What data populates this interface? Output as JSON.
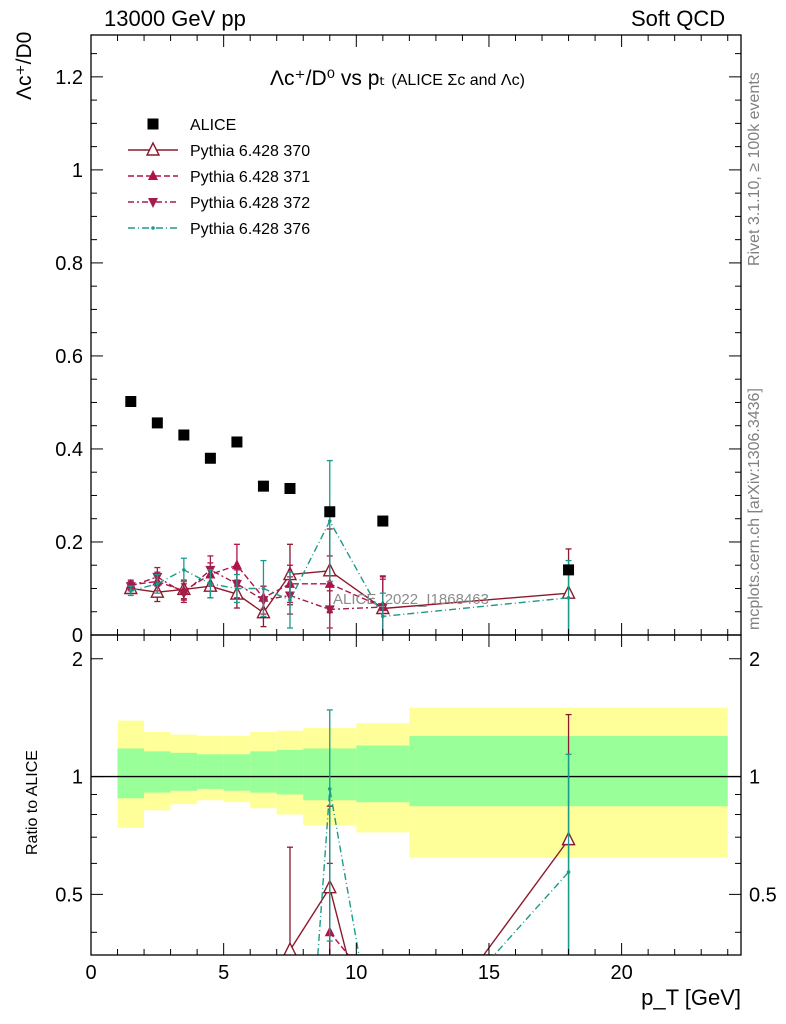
{
  "header": {
    "beam": "13000 GeV pp",
    "process": "Soft QCD"
  },
  "side_notes": {
    "rivet": "Rivet 3.1.10, ≥ 100k events",
    "mcplots": "mcplots.cern.ch [arXiv:1306.3436]"
  },
  "chart_data": {
    "type": "scatter",
    "title_main": "Λc⁺/D⁰ vs pₜ",
    "title_sub": "(ALICE Σc and Λc)",
    "watermark": "ALICE_2022_I1868463",
    "xlabel": "p_T [GeV]",
    "ylabel": "Λc⁺/D0",
    "ratio_ylabel": "Ratio to ALICE",
    "xlim": [
      0,
      24.5
    ],
    "ylim": [
      0,
      1.29
    ],
    "ratio_ylim": [
      0.35,
      2.3
    ],
    "x_ticks": [
      0,
      5,
      10,
      15,
      20
    ],
    "y_ticks": [
      0,
      0.2,
      0.4,
      0.6,
      0.8,
      1,
      1.2
    ],
    "ratio_ticks": [
      0.5,
      1,
      2
    ],
    "legend_position": "top-left",
    "data": {
      "name": "ALICE",
      "x": [
        1.5,
        2.5,
        3.5,
        4.5,
        5.5,
        6.5,
        7.5,
        9,
        11,
        18
      ],
      "y": [
        0.502,
        0.456,
        0.43,
        0.38,
        0.415,
        0.32,
        0.315,
        0.265,
        0.245,
        0.14
      ]
    },
    "bins": {
      "edges": [
        1,
        2,
        3,
        4,
        5,
        6,
        7,
        8,
        10,
        12,
        24
      ],
      "band_stat": [
        [
          0.88,
          1.18
        ],
        [
          0.91,
          1.16
        ],
        [
          0.92,
          1.15
        ],
        [
          0.93,
          1.14
        ],
        [
          0.92,
          1.14
        ],
        [
          0.91,
          1.16
        ],
        [
          0.9,
          1.17
        ],
        [
          0.87,
          1.18
        ],
        [
          0.86,
          1.2
        ],
        [
          0.84,
          1.27
        ]
      ],
      "band_total": [
        [
          0.74,
          1.39
        ],
        [
          0.82,
          1.3
        ],
        [
          0.85,
          1.28
        ],
        [
          0.87,
          1.27
        ],
        [
          0.86,
          1.27
        ],
        [
          0.83,
          1.3
        ],
        [
          0.8,
          1.31
        ],
        [
          0.75,
          1.33
        ],
        [
          0.72,
          1.37
        ],
        [
          0.62,
          1.5
        ]
      ]
    },
    "series": [
      {
        "name": "Pythia 6.428 370",
        "color": "#8b1a2c",
        "marker": "triangle-open",
        "dash": "",
        "x": [
          1.5,
          2.5,
          3.5,
          4.5,
          5.5,
          6.5,
          7.5,
          9,
          11,
          18
        ],
        "y": [
          0.1,
          0.092,
          0.098,
          0.105,
          0.088,
          0.048,
          0.13,
          0.138,
          0.057,
          0.09
        ],
        "err": [
          0.008,
          0.02,
          0.02,
          0.025,
          0.03,
          0.03,
          0.065,
          0.09,
          0.07,
          0.095
        ]
      },
      {
        "name": "Pythia 6.428 371",
        "color": "#b0124a",
        "marker": "triangle-up",
        "dash": "6 3",
        "x": [
          1.5,
          2.5,
          3.5,
          4.5,
          5.5,
          6.5,
          7.5,
          9,
          11,
          18
        ],
        "y": [
          0.108,
          0.115,
          0.095,
          0.13,
          0.15,
          0.08,
          0.11,
          0.11,
          0.06,
          0.0
        ],
        "err": [
          0.01,
          0.02,
          0.02,
          0.025,
          0.045,
          0.025,
          0.04,
          0.06,
          0.065,
          0.0
        ]
      },
      {
        "name": "Pythia 6.428 372",
        "color": "#a01d4d",
        "marker": "triangle-down",
        "dash": "6 3 2 3",
        "x": [
          1.5,
          2.5,
          3.5,
          4.5,
          5.5,
          6.5,
          7.5,
          9,
          11,
          18
        ],
        "y": [
          0.105,
          0.125,
          0.09,
          0.14,
          0.11,
          0.075,
          0.085,
          0.055,
          0.06,
          0.0
        ],
        "err": [
          0.01,
          0.02,
          0.02,
          0.03,
          0.03,
          0.03,
          0.04,
          0.04,
          0.06,
          0.0
        ]
      },
      {
        "name": "Pythia 6.428 376",
        "color": "#1a9b8a",
        "marker": "dot",
        "dash": "7 3 1 3",
        "x": [
          1.5,
          2.5,
          3.5,
          4.5,
          5.5,
          6.5,
          7.5,
          9,
          11,
          18
        ],
        "y": [
          0.095,
          0.11,
          0.14,
          0.11,
          0.1,
          0.1,
          0.075,
          0.245,
          0.04,
          0.08
        ],
        "err": [
          0.01,
          0.02,
          0.025,
          0.03,
          0.03,
          0.06,
          0.06,
          0.13,
          0.05,
          0.08
        ]
      }
    ],
    "ratio_series": [
      {
        "name": "Pythia 6.428 370",
        "x": [
          7.5,
          9,
          9.65,
          14.8,
          18
        ],
        "y": [
          0.36,
          0.52,
          0.35,
          0.35,
          0.69
        ],
        "err": [
          0.3,
          0.32,
          0,
          0,
          0.75
        ]
      },
      {
        "name": "Pythia 6.428 371",
        "x": [
          9,
          9.7
        ],
        "y": [
          0.4,
          0.35
        ],
        "err": [
          0.2,
          0
        ]
      },
      {
        "name": "Pythia 6.428 376",
        "x": [
          8.55,
          9,
          10.1,
          15.2,
          18
        ],
        "y": [
          0.35,
          0.93,
          0.35,
          0.35,
          0.57
        ],
        "err": [
          0,
          0.55,
          0,
          0,
          0.57
        ]
      }
    ]
  }
}
